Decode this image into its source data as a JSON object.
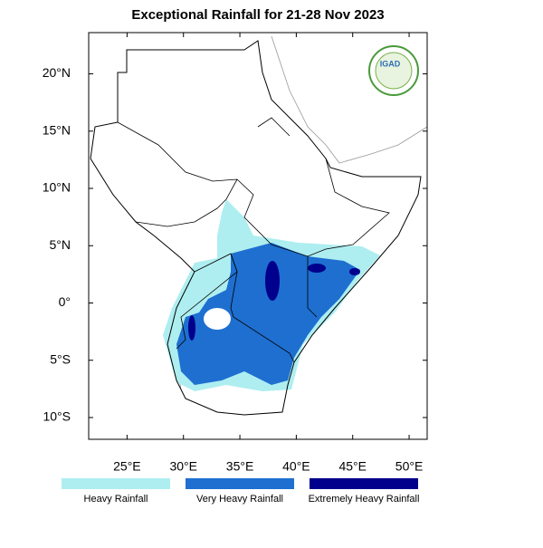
{
  "title": "Exceptional Rainfall for 21-28 Nov 2023",
  "logo": "IGAD",
  "map": {
    "xlim": [
      21.6,
      51.6
    ],
    "ylim": [
      -11.9,
      23.6
    ],
    "xticks": [
      {
        "value": 25,
        "label": "25°E"
      },
      {
        "value": 30,
        "label": "30°E"
      },
      {
        "value": 35,
        "label": "35°E"
      },
      {
        "value": 40,
        "label": "40°E"
      },
      {
        "value": 45,
        "label": "45°E"
      },
      {
        "value": 50,
        "label": "50°E"
      }
    ],
    "yticks": [
      {
        "value": 20,
        "label": "20°N"
      },
      {
        "value": 15,
        "label": "15°N"
      },
      {
        "value": 10,
        "label": "10°N"
      },
      {
        "value": 5,
        "label": "5°N"
      },
      {
        "value": 0,
        "label": "0°"
      },
      {
        "value": -5,
        "label": "5°S"
      },
      {
        "value": -10,
        "label": "10°S"
      }
    ]
  },
  "legend": [
    {
      "name": "Heavy Rainfall",
      "color": "#aeeef0"
    },
    {
      "name": "Very Heavy Rainfall",
      "color": "#1e6fd0"
    },
    {
      "name": "Extremely Heavy Rainfall",
      "color": "#00008c"
    }
  ]
}
